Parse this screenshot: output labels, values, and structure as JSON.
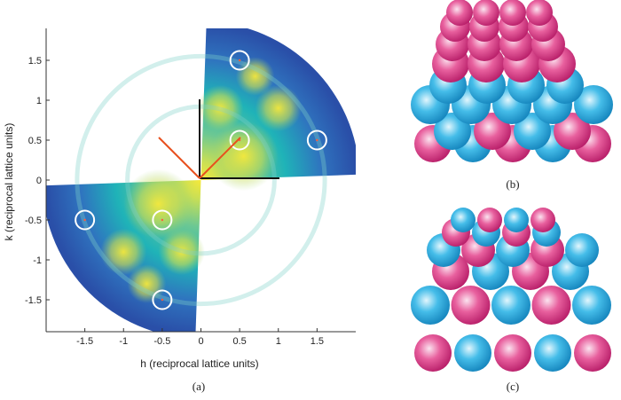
{
  "chart_data": {
    "type": "heatmap",
    "xlabel": "h (reciprocal lattice units)",
    "ylabel": "k (reciprocal lattice units)",
    "xlim": [
      -2,
      2
    ],
    "ylim": [
      -1.9,
      1.9
    ],
    "xticks": [
      -1.5,
      -1,
      -0.5,
      0,
      0.5,
      1,
      1.5
    ],
    "yticks": [
      1.5,
      1,
      0.5,
      0,
      -0.5,
      -1,
      -1.5
    ],
    "xtick_labels": [
      "-1.5",
      "-1",
      "-0.5",
      "0",
      "0.5",
      "1",
      "1.5"
    ],
    "ytick_labels": [
      "1.5",
      "1",
      "0.5",
      "0",
      "-0.5",
      "-1",
      "-1.5"
    ],
    "grid": false,
    "circled_peaks": [
      {
        "h": 0.5,
        "k": 1.5
      },
      {
        "h": 0.5,
        "k": 0.5
      },
      {
        "h": 1.5,
        "k": 0.5
      },
      {
        "h": -1.5,
        "k": -0.5
      },
      {
        "h": -0.5,
        "k": -0.5
      },
      {
        "h": -0.5,
        "k": -1.5
      }
    ],
    "colors": {
      "low": "#2a4fa8",
      "mid": "#1fb3b8",
      "high": "#f7e93a"
    }
  },
  "panel_labels": {
    "a": "(a)",
    "b": "(b)",
    "c": "(c)"
  },
  "sphere_colors": {
    "pink": "#e0468e",
    "cyan": "#2aa9de"
  }
}
